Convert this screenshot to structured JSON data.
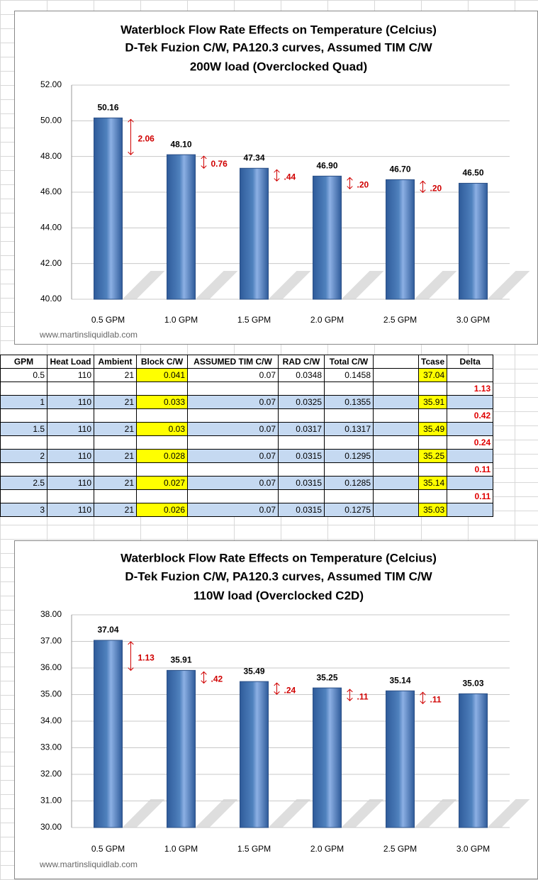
{
  "chart_data": [
    {
      "type": "bar",
      "title": [
        "Waterblock Flow Rate Effects on Temperature (Celcius)",
        "D-Tek Fuzion C/W,  PA120.3 curves,  Assumed TIM C/W",
        "200W load (Overclocked Quad)"
      ],
      "categories": [
        "0.5 GPM",
        "1.0 GPM",
        "1.5 GPM",
        "2.0 GPM",
        "2.5 GPM",
        "3.0 GPM"
      ],
      "values": [
        50.16,
        48.1,
        47.34,
        46.9,
        46.7,
        46.5
      ],
      "value_labels": [
        "50.16",
        "48.10",
        "47.34",
        "46.90",
        "46.70",
        "46.50"
      ],
      "annotations": [
        "2.06",
        "0.76",
        ".44",
        ".20",
        ".20"
      ],
      "color": "#4f81bd",
      "ylim": [
        40,
        52
      ],
      "yticks": [
        {
          "value": 40,
          "label": "40.00"
        },
        {
          "value": 42,
          "label": "42.00"
        },
        {
          "value": 44,
          "label": "44.00"
        },
        {
          "value": 46,
          "label": "46.00"
        },
        {
          "value": 48,
          "label": "48.00"
        },
        {
          "value": 50,
          "label": "50.00"
        },
        {
          "value": 52,
          "label": "52.00"
        }
      ],
      "grid": true,
      "source": "www.martinsliquidlab.com"
    },
    {
      "type": "bar",
      "title": [
        "Waterblock Flow Rate Effects on Temperature (Celcius)",
        "D-Tek Fuzion C/W,  PA120.3 curves,  Assumed TIM C/W",
        "110W load (Overclocked C2D)"
      ],
      "categories": [
        "0.5 GPM",
        "1.0 GPM",
        "1.5 GPM",
        "2.0 GPM",
        "2.5 GPM",
        "3.0 GPM"
      ],
      "values": [
        37.04,
        35.91,
        35.49,
        35.25,
        35.14,
        35.03
      ],
      "annotations": [
        "1.13",
        ".42",
        ".24",
        ".11",
        ".11"
      ],
      "color": "#4f81bd",
      "ylim": [
        30,
        38
      ],
      "yticks": [
        {
          "value": 30,
          "label": "30.00"
        },
        {
          "value": 31,
          "label": "31.00"
        },
        {
          "value": 32,
          "label": "32.00"
        },
        {
          "value": 33,
          "label": "33.00"
        },
        {
          "value": 34,
          "label": "34.00"
        },
        {
          "value": 35,
          "label": "35.00"
        },
        {
          "value": 36,
          "label": "36.00"
        },
        {
          "value": 37,
          "label": "37.00"
        },
        {
          "value": 38,
          "label": "38.00"
        }
      ],
      "grid": true,
      "source": "www.martinsliquidlab.com"
    }
  ],
  "table": {
    "header": [
      "GPM",
      "Heat Load",
      "Ambient",
      "Block C/W",
      "ASSUMED TIM C/W",
      "RAD C/W",
      "Total C/W",
      null,
      "Tcase",
      "Delta"
    ],
    "rows": [
      [
        0.5,
        110,
        21,
        0.041,
        0.07,
        0.0348,
        0.1458,
        null,
        37.04,
        null
      ],
      [
        null,
        null,
        null,
        null,
        null,
        null,
        null,
        null,
        null,
        1.13
      ],
      [
        1,
        110,
        21,
        0.033,
        0.07,
        0.0325,
        0.1355,
        null,
        35.91,
        null
      ],
      [
        null,
        null,
        null,
        null,
        null,
        null,
        null,
        null,
        null,
        0.42
      ],
      [
        1.5,
        110,
        21,
        0.03,
        0.07,
        0.0317,
        0.1317,
        null,
        35.49,
        null
      ],
      [
        null,
        null,
        null,
        null,
        null,
        null,
        null,
        null,
        null,
        0.24
      ],
      [
        2,
        110,
        21,
        0.028,
        0.07,
        0.0315,
        0.1295,
        null,
        35.25,
        null
      ],
      [
        null,
        null,
        null,
        null,
        null,
        null,
        null,
        null,
        null,
        0.11
      ],
      [
        2.5,
        110,
        21,
        0.027,
        0.07,
        0.0315,
        0.1285,
        null,
        35.14,
        null
      ],
      [
        null,
        null,
        null,
        null,
        null,
        null,
        null,
        null,
        null,
        0.11
      ],
      [
        3,
        110,
        21,
        0.026,
        0.07,
        0.0315,
        0.1275,
        null,
        35.03,
        null
      ]
    ]
  }
}
